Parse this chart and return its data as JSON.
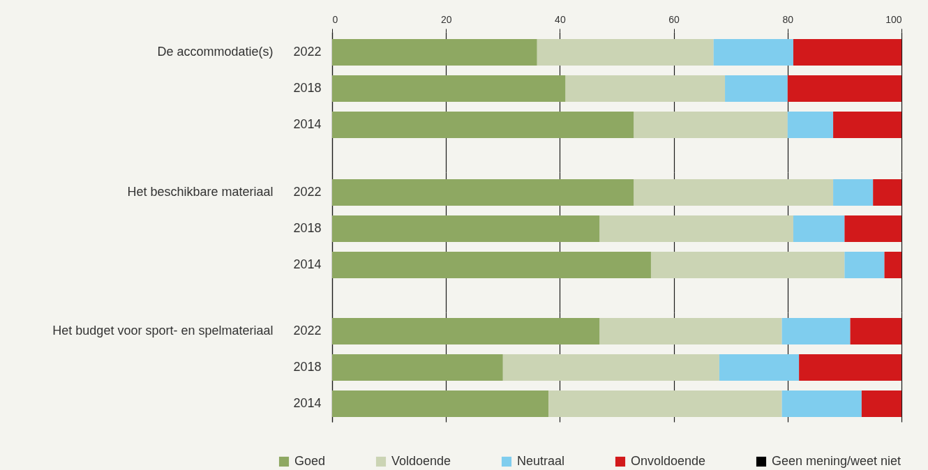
{
  "chart_data": [
    {
      "type": "bar",
      "orientation": "horizontal",
      "stacked": true,
      "ylabel": "De accommodatie(s)",
      "categories": [
        "2022",
        "2018",
        "2014"
      ],
      "xlim": [
        0,
        100
      ],
      "xticks": [
        0,
        20,
        40,
        60,
        80,
        100
      ],
      "grid": "x",
      "legend": "bottom",
      "series": [
        {
          "name": "Goed",
          "color": "#8ea862",
          "values": [
            36,
            41,
            53
          ]
        },
        {
          "name": "Voldoende",
          "color": "#cbd4b4",
          "values": [
            31,
            28,
            27
          ]
        },
        {
          "name": "Neutraal",
          "color": "#7fcdee",
          "values": [
            14,
            11,
            8
          ]
        },
        {
          "name": "Onvoldoende",
          "color": "#d2191b",
          "values": [
            19,
            20,
            12
          ]
        },
        {
          "name": "Geen mening/weet niet",
          "color": "#000000",
          "values": [
            0,
            0,
            0
          ]
        }
      ]
    },
    {
      "type": "bar",
      "orientation": "horizontal",
      "stacked": true,
      "ylabel": "Het beschikbare materiaal",
      "categories": [
        "2022",
        "2018",
        "2014"
      ],
      "xlim": [
        0,
        100
      ],
      "xticks": [
        0,
        20,
        40,
        60,
        80,
        100
      ],
      "grid": "x",
      "tick_labels": "y",
      "series": [
        {
          "color": "#8ea862",
          "values": [
            53,
            47,
            56
          ]
        },
        {
          "color": "#cbd4b4",
          "values": [
            35,
            34,
            34
          ]
        },
        {
          "color": "#7fcdee",
          "values": [
            7,
            9,
            7
          ]
        },
        {
          "color": "#d2191b",
          "values": [
            5,
            10,
            3
          ]
        },
        {
          "color": "#000000",
          "values": [
            0,
            0,
            0
          ]
        }
      ]
    },
    {
      "type": "bar",
      "orientation": "horizontal",
      "stacked": true,
      "ylabel": "Het budget voor sport- en spelmateriaal",
      "categories": [
        "2022",
        "2018",
        "2014"
      ],
      "xlim": [
        0,
        100
      ],
      "xticks": [
        0,
        20,
        40,
        60,
        80,
        100
      ],
      "grid": "x",
      "tick_labels": "y",
      "series": [
        {
          "color": "#8ea862",
          "values": [
            47,
            30,
            38
          ]
        },
        {
          "color": "#cbd4b4",
          "values": [
            32,
            38,
            41
          ]
        },
        {
          "color": "#7fcdee",
          "values": [
            12,
            14,
            14
          ]
        },
        {
          "color": "#d2191b",
          "values": [
            9,
            18,
            7
          ]
        },
        {
          "color": "#000000",
          "values": [
            0,
            0,
            0
          ]
        }
      ]
    }
  ]
}
